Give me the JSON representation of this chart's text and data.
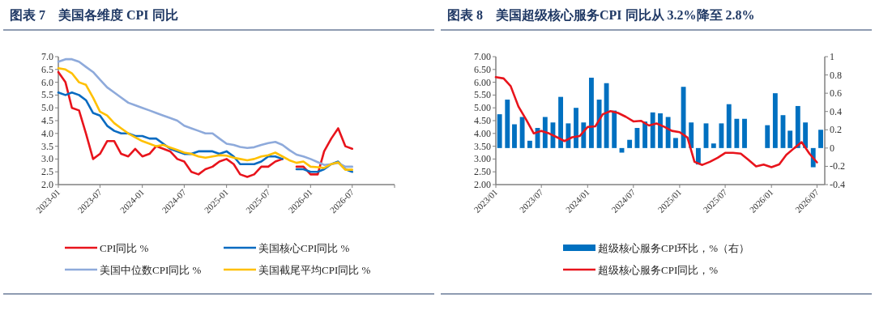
{
  "chart_data": [
    {
      "type": "line",
      "title": "图表 7　美国各维度 CPI 同比",
      "xlim": [
        "2023-01",
        "2027-01"
      ],
      "xticks": [
        {
          "value": "2023-01",
          "label": "2023-01"
        },
        {
          "value": "2023-07",
          "label": "2023-07"
        },
        {
          "value": "2024-01",
          "label": "2024-01"
        },
        {
          "value": "2024-07",
          "label": "2024-07"
        },
        {
          "value": "2025-01",
          "label": "2025-01"
        },
        {
          "value": "2025-07",
          "label": "2025-07"
        },
        {
          "value": "2026-01",
          "label": "2026-01"
        },
        {
          "value": "2026-07",
          "label": "2026-07"
        },
        {
          "value": "2027-01",
          "label": null
        }
      ],
      "ylim": [
        2,
        7
      ],
      "yticks": [
        {
          "value": 2,
          "label": "2.0"
        },
        {
          "value": 2.5,
          "label": "2.5"
        },
        {
          "value": 3,
          "label": "3.0"
        },
        {
          "value": 3.5,
          "label": "3.5"
        },
        {
          "value": 4,
          "label": "4.0"
        },
        {
          "value": 4.5,
          "label": "4.5"
        },
        {
          "value": 5,
          "label": "5.0"
        },
        {
          "value": 5.5,
          "label": "5.5"
        },
        {
          "value": 6,
          "label": "6.0"
        },
        {
          "value": 6.5,
          "label": "6.5"
        },
        {
          "value": 7,
          "label": "7.0"
        }
      ],
      "x": [
        "2023-01",
        "2023-02",
        "2023-03",
        "2023-04",
        "2023-05",
        "2023-06",
        "2023-07",
        "2023-08",
        "2023-09",
        "2023-10",
        "2023-11",
        "2023-12",
        "2024-01",
        "2024-02",
        "2024-03",
        "2024-04",
        "2024-05",
        "2024-06",
        "2024-07",
        "2024-08",
        "2024-09",
        "2024-10",
        "2024-11",
        "2024-12",
        "2025-01",
        "2025-02",
        "2025-03",
        "2025-04",
        "2025-05",
        "2025-06",
        "2025-07",
        "2025-08",
        "2025-09",
        "2025-10",
        "2025-11",
        "2025-12",
        "2026-01",
        "2026-02",
        "2026-03",
        "2026-04",
        "2026-05",
        "2026-06",
        "2026-07"
      ],
      "legend": "bottom",
      "grid": false,
      "series": [
        {
          "name": "CPI同比 %",
          "color": "#e8141c",
          "values": [
            6.4,
            6.0,
            5.0,
            4.9,
            4.0,
            3.0,
            3.2,
            3.7,
            3.7,
            3.2,
            3.1,
            3.4,
            3.1,
            3.2,
            3.5,
            3.4,
            3.3,
            3.0,
            2.9,
            2.5,
            2.4,
            2.6,
            2.7,
            2.9,
            3.0,
            2.8,
            2.4,
            2.3,
            2.4,
            2.7,
            2.7,
            2.9,
            3.0,
            null,
            2.7,
            2.7,
            2.4,
            2.4,
            3.3,
            3.8,
            4.2,
            3.5,
            3.4
          ]
        },
        {
          "name": "美国核心CPI同比 %",
          "color": "#0a6bc1",
          "values": [
            5.6,
            5.5,
            5.6,
            5.5,
            5.3,
            4.8,
            4.7,
            4.3,
            4.1,
            4.0,
            4.0,
            3.9,
            3.9,
            3.8,
            3.8,
            3.6,
            3.4,
            3.3,
            3.2,
            3.2,
            3.3,
            3.3,
            3.3,
            3.2,
            3.3,
            3.1,
            2.8,
            2.8,
            2.8,
            2.9,
            3.1,
            3.1,
            3.0,
            null,
            2.6,
            2.6,
            2.5,
            2.5,
            2.6,
            2.8,
            2.9,
            2.6,
            2.5
          ]
        },
        {
          "name": "美国中位数CPI同比 %",
          "color": "#8eaadb",
          "values": [
            6.8,
            6.9,
            6.9,
            6.8,
            6.6,
            6.4,
            6.1,
            5.8,
            5.6,
            5.4,
            5.2,
            5.1,
            5.0,
            4.9,
            4.8,
            4.7,
            4.6,
            4.5,
            4.3,
            4.2,
            4.1,
            4.0,
            4.0,
            3.8,
            3.6,
            3.55,
            3.47,
            3.43,
            3.46,
            3.55,
            3.62,
            3.67,
            3.55,
            3.35,
            3.17,
            3.1,
            3.0,
            2.88,
            2.77,
            2.8,
            2.85,
            2.7,
            2.7
          ]
        },
        {
          "name": "美国截尾平均CPI同比 %",
          "color": "#ffc000",
          "values": [
            6.55,
            6.5,
            6.35,
            6.0,
            5.9,
            5.4,
            4.85,
            4.7,
            4.4,
            4.2,
            4.0,
            3.85,
            3.7,
            3.6,
            3.5,
            3.55,
            3.45,
            3.35,
            3.25,
            3.2,
            3.1,
            3.05,
            3.1,
            3.15,
            3.13,
            3.05,
            3.0,
            2.95,
            3.0,
            3.1,
            3.15,
            3.25,
            3.1,
            2.95,
            2.85,
            2.9,
            2.7,
            2.68,
            2.65,
            2.8,
            2.87,
            2.58,
            2.58
          ]
        }
      ]
    },
    {
      "type": "bar",
      "title": "图表 8　美国超级核心服务CPI 同比从 3.2%降至 2.8%",
      "xlim": [
        "2023-01",
        "2026-08"
      ],
      "xticks": [
        {
          "value": "2023-01",
          "label": "2023/01"
        },
        {
          "value": "2023-07",
          "label": "2023/07"
        },
        {
          "value": "2024-01",
          "label": "2024/01"
        },
        {
          "value": "2024-07",
          "label": "2024/07"
        },
        {
          "value": "2025-01",
          "label": "2025/01"
        },
        {
          "value": "2025-07",
          "label": "2025/07"
        },
        {
          "value": "2026-01",
          "label": "2026/01"
        },
        {
          "value": "2026-07",
          "label": "2026/07"
        }
      ],
      "ylim": [
        2,
        7
      ],
      "yticks": [
        {
          "value": 2,
          "label": "2.00"
        },
        {
          "value": 2.5,
          "label": "2.50"
        },
        {
          "value": 3,
          "label": "3.00"
        },
        {
          "value": 3.5,
          "label": "3.50"
        },
        {
          "value": 4,
          "label": "4.00"
        },
        {
          "value": 4.5,
          "label": "4.50"
        },
        {
          "value": 5,
          "label": "5.00"
        },
        {
          "value": 5.5,
          "label": "5.50"
        },
        {
          "value": 6,
          "label": "6.00"
        },
        {
          "value": 6.5,
          "label": "6.50"
        },
        {
          "value": 7,
          "label": "7.00"
        }
      ],
      "y2lim": [
        -0.4,
        1
      ],
      "y2ticks": [
        -0.4,
        -0.2,
        0,
        0.2,
        0.4,
        0.6,
        0.8,
        1
      ],
      "x": [
        "2023-01",
        "2023-02",
        "2023-03",
        "2023-04",
        "2023-05",
        "2023-06",
        "2023-07",
        "2023-08",
        "2023-09",
        "2023-10",
        "2023-11",
        "2023-12",
        "2024-01",
        "2024-02",
        "2024-03",
        "2024-04",
        "2024-05",
        "2024-06",
        "2024-07",
        "2024-08",
        "2024-09",
        "2024-10",
        "2024-11",
        "2024-12",
        "2025-01",
        "2025-02",
        "2025-03",
        "2025-04",
        "2025-05",
        "2025-06",
        "2025-07",
        "2025-08",
        "2025-09",
        "2025-10",
        "2025-11",
        "2025-12",
        "2026-01",
        "2026-02",
        "2026-03",
        "2026-04",
        "2026-05",
        "2026-06",
        "2026-07"
      ],
      "legend": "bottom",
      "grid": false,
      "series": [
        {
          "name": "超级核心服务CPI环比，%（右）",
          "type": "bar",
          "axis": "y2",
          "color": "#0070c0",
          "x": [
            "2023-01-16",
            "2023-02-16",
            "2023-03-16",
            "2023-04-16",
            "2023-05-16",
            "2023-06-16",
            "2023-07-16",
            "2023-08-16",
            "2023-09-16",
            "2023-10-16",
            "2023-11-16",
            "2023-12-16",
            "2024-01-16",
            "2024-02-16",
            "2024-03-16",
            "2024-04-16",
            "2024-05-16",
            "2024-06-16",
            "2024-07-16",
            "2024-08-16",
            "2024-09-16",
            "2024-10-16",
            "2024-11-16",
            "2024-12-16",
            "2025-01-16",
            "2025-02-16",
            "2025-03-16",
            "2025-04-16",
            "2025-05-16",
            "2025-06-16",
            "2025-07-16",
            "2025-08-16",
            "2025-09-16",
            "2025-10-16",
            "2025-11-16",
            "2025-12-16",
            "2026-01-16",
            "2026-02-16",
            "2026-03-16",
            "2026-04-16",
            "2026-05-16",
            "2026-06-16",
            "2026-07-16"
          ],
          "values": [
            0.37,
            0.53,
            0.26,
            0.34,
            0.08,
            0.22,
            0.34,
            0.28,
            0.56,
            0.27,
            0.44,
            0.28,
            0.77,
            0.53,
            0.71,
            0.41,
            -0.05,
            0.09,
            0.22,
            0.29,
            0.39,
            0.38,
            0.34,
            0.11,
            0.67,
            0.28,
            -0.18,
            0.27,
            0.05,
            0.27,
            0.48,
            0.32,
            0.32,
            null,
            null,
            0.25,
            0.6,
            0.36,
            0.19,
            0.46,
            0.28,
            -0.21,
            0.2
          ]
        },
        {
          "name": "超级核心服务CPI同比，%",
          "type": "line",
          "color": "#e8141c",
          "values": [
            6.2,
            6.15,
            5.85,
            5.05,
            4.55,
            4.0,
            4.1,
            4.0,
            3.85,
            3.7,
            3.85,
            3.9,
            4.25,
            4.28,
            4.75,
            4.87,
            4.8,
            4.65,
            4.47,
            4.49,
            4.31,
            4.39,
            4.26,
            4.1,
            4.05,
            3.84,
            2.89,
            2.77,
            2.89,
            3.05,
            3.24,
            3.24,
            3.21,
            2.97,
            2.71,
            2.78,
            2.68,
            2.79,
            3.16,
            3.42,
            3.66,
            3.21,
            2.87
          ]
        }
      ]
    }
  ]
}
